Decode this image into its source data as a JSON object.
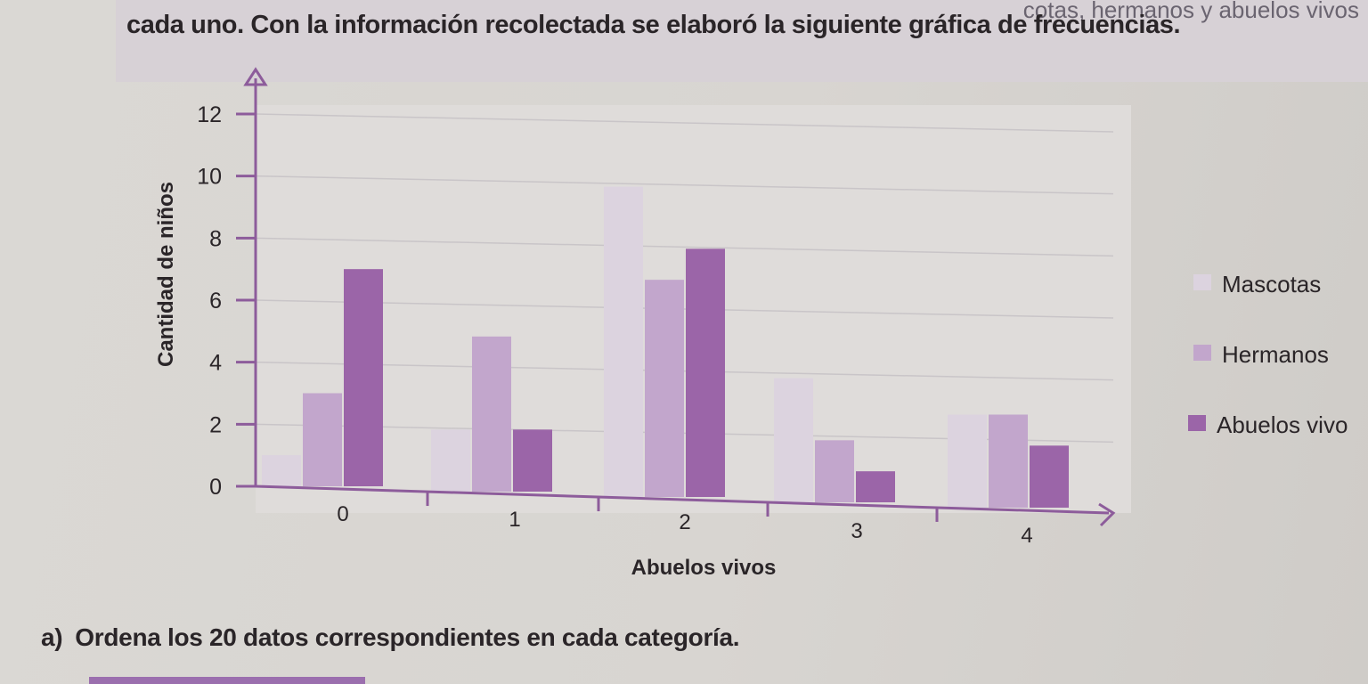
{
  "page": {
    "previous_line_fragment": "cotas, hermanos y abuelos vivos",
    "intro_text": "cada uno. Con la información recolectada se elaboró la siguiente gráfica de frecuencias.",
    "question_letter": "a)",
    "question_text": "Ordena los 20 datos correspondientes en cada categoría."
  },
  "chart_data": {
    "type": "bar",
    "title": "",
    "xlabel": "Abuelos vivos",
    "ylabel": "Cantidad de niños",
    "categories": [
      "0",
      "1",
      "2",
      "3",
      "4"
    ],
    "yticks": [
      "0",
      "2",
      "4",
      "6",
      "8",
      "10",
      "12"
    ],
    "ylim": [
      0,
      12
    ],
    "grid": true,
    "legend_position": "right",
    "series": [
      {
        "name": "Mascotas",
        "color": "#dcd3df",
        "values": [
          1,
          2,
          10,
          4,
          3
        ]
      },
      {
        "name": "Hermanos",
        "color": "#c2a6cc",
        "values": [
          3,
          5,
          7,
          2,
          3
        ]
      },
      {
        "name": "Abuelos vivo",
        "color": "#9b65a8",
        "values": [
          7,
          2,
          8,
          1,
          2
        ]
      }
    ]
  }
}
